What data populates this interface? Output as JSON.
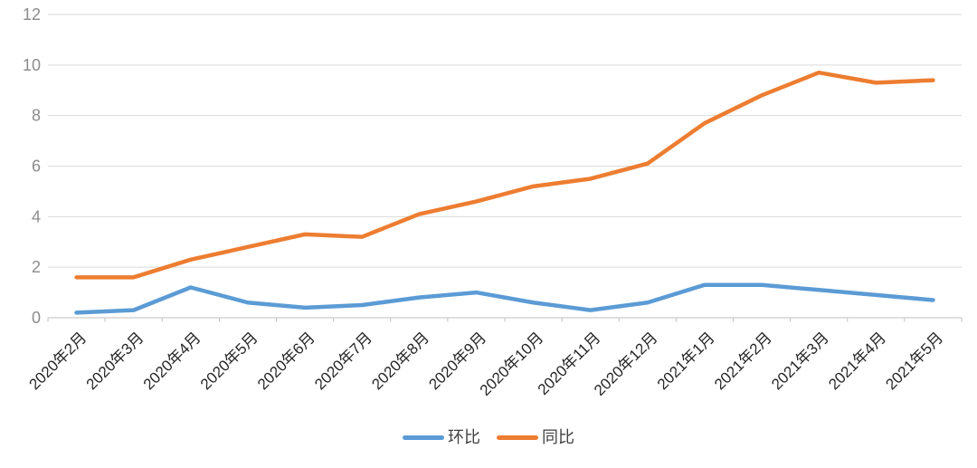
{
  "chart_data": {
    "type": "line",
    "title": "",
    "xlabel": "",
    "ylabel": "",
    "categories": [
      "2020年2月",
      "2020年3月",
      "2020年4月",
      "2020年5月",
      "2020年6月",
      "2020年7月",
      "2020年8月",
      "2020年9月",
      "2020年10月",
      "2020年11月",
      "2020年12月",
      "2021年1月",
      "2021年2月",
      "2021年3月",
      "2021年4月",
      "2021年5月"
    ],
    "series": [
      {
        "key": "mom",
        "name": "环比",
        "color": "#5B9BD5",
        "values": [
          0.2,
          0.3,
          1.2,
          0.6,
          0.4,
          0.5,
          0.8,
          1.0,
          0.6,
          0.3,
          0.6,
          1.3,
          1.3,
          1.1,
          0.9,
          0.7
        ]
      },
      {
        "key": "yoy",
        "name": "同比",
        "color": "#ED7D31",
        "values": [
          1.6,
          1.6,
          2.3,
          2.8,
          3.3,
          3.2,
          4.1,
          4.6,
          5.2,
          5.5,
          6.1,
          7.7,
          8.8,
          9.7,
          9.3,
          9.4
        ]
      }
    ],
    "ylim": [
      0,
      12
    ],
    "ytick_step": 2,
    "ytick_labels": [
      "0",
      "2",
      "4",
      "6",
      "8",
      "10",
      "12"
    ],
    "grid": true,
    "legend_position": "bottom-center"
  },
  "colors": {
    "background": "#FFFFFF",
    "gridline": "#D9D9D9",
    "axis_line": "#BFBFBF",
    "y_tick_label": "#8C8C8C",
    "x_tick_label": "#262626",
    "legend_text": "#404040"
  }
}
